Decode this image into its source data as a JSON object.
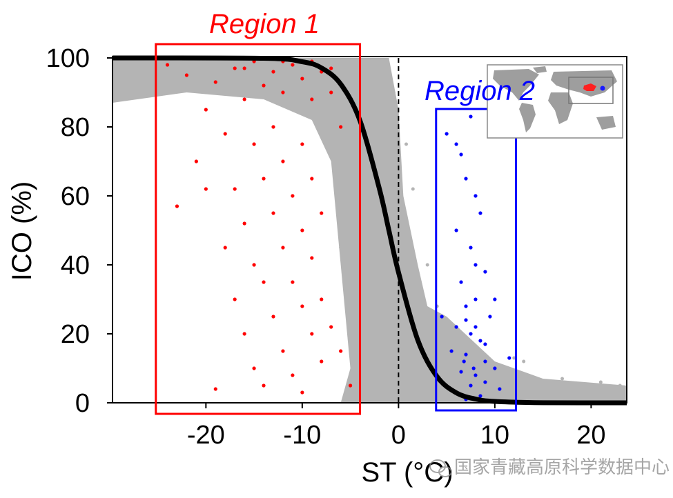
{
  "chart_data": {
    "type": "scatter",
    "title": "",
    "xlabel": "ST (°C)",
    "ylabel": "ICO (%)",
    "xlim": [
      -29.7,
      23.7
    ],
    "ylim": [
      0,
      100
    ],
    "xticks": [
      -20,
      -10,
      0,
      10,
      20
    ],
    "yticks": [
      0,
      20,
      40,
      60,
      80,
      100
    ],
    "grid": false,
    "reference_line": {
      "x": 0,
      "style": "dashed",
      "color": "#000000"
    },
    "colors": {
      "background_points": "#b4b4b4",
      "region1": "#ff0000",
      "region2": "#0000ff",
      "curve": "#000000"
    },
    "dense_background_region": [
      [
        -29.7,
        100
      ],
      [
        -1,
        100
      ],
      [
        0,
        85
      ],
      [
        0.5,
        60
      ],
      [
        2,
        40
      ],
      [
        3,
        28
      ],
      [
        5,
        25
      ],
      [
        10,
        12
      ],
      [
        15,
        7
      ],
      [
        23.7,
        5
      ],
      [
        23.7,
        0
      ],
      [
        -6,
        0
      ],
      [
        -5,
        10
      ],
      [
        -6,
        40
      ],
      [
        -7,
        70
      ],
      [
        -9,
        82
      ],
      [
        -14,
        88
      ],
      [
        -22,
        90
      ],
      [
        -29.7,
        87
      ]
    ],
    "series": [
      {
        "color": "#b4b4b4",
        "points": [
          [
            -28,
            92
          ],
          [
            -26,
            89
          ],
          [
            -25,
            95
          ],
          [
            -27,
            97
          ],
          [
            -23,
            91
          ],
          [
            -6,
            45
          ],
          [
            -5,
            30
          ],
          [
            -4,
            60
          ],
          [
            -3,
            80
          ],
          [
            -2,
            90
          ],
          [
            -1,
            70
          ],
          [
            0,
            55
          ],
          [
            1,
            45
          ],
          [
            2,
            35
          ],
          [
            2.5,
            20
          ],
          [
            3,
            40
          ],
          [
            3.5,
            10
          ],
          [
            4,
            28
          ],
          [
            6,
            22
          ],
          [
            8,
            15
          ],
          [
            9,
            10
          ],
          [
            10,
            8
          ],
          [
            11,
            5
          ],
          [
            12,
            9
          ],
          [
            13,
            3
          ],
          [
            14,
            6
          ],
          [
            15,
            2
          ],
          [
            16,
            4
          ],
          [
            17,
            7
          ],
          [
            18,
            3
          ],
          [
            19,
            5
          ],
          [
            20,
            2
          ],
          [
            21,
            6
          ],
          [
            22,
            3
          ],
          [
            23,
            5
          ],
          [
            12,
            13
          ],
          [
            13,
            12
          ],
          [
            0.8,
            75
          ],
          [
            -0.5,
            90
          ],
          [
            1.5,
            62
          ]
        ]
      },
      {
        "name": "Region 1",
        "color": "#ff0000",
        "points": [
          [
            -23,
            57
          ],
          [
            -21,
            70
          ],
          [
            -20,
            85
          ],
          [
            -19,
            93
          ],
          [
            -19,
            4
          ],
          [
            -18,
            78
          ],
          [
            -18,
            45
          ],
          [
            -17,
            97
          ],
          [
            -17,
            62
          ],
          [
            -17,
            30
          ],
          [
            -16,
            88
          ],
          [
            -16,
            52
          ],
          [
            -16,
            20
          ],
          [
            -15,
            99
          ],
          [
            -15,
            75
          ],
          [
            -15,
            40
          ],
          [
            -15,
            10
          ],
          [
            -14,
            92
          ],
          [
            -14,
            65
          ],
          [
            -14,
            35
          ],
          [
            -14,
            5
          ],
          [
            -13,
            96
          ],
          [
            -13,
            80
          ],
          [
            -13,
            55
          ],
          [
            -13,
            25
          ],
          [
            -12,
            90
          ],
          [
            -12,
            70
          ],
          [
            -12,
            45
          ],
          [
            -12,
            15
          ],
          [
            -11,
            98
          ],
          [
            -11,
            60
          ],
          [
            -11,
            35
          ],
          [
            -11,
            8
          ],
          [
            -10,
            94
          ],
          [
            -10,
            75
          ],
          [
            -10,
            50
          ],
          [
            -10,
            28
          ],
          [
            -10,
            3
          ],
          [
            -9,
            88
          ],
          [
            -9,
            65
          ],
          [
            -9,
            42
          ],
          [
            -9,
            20
          ],
          [
            -8,
            96
          ],
          [
            -8,
            55
          ],
          [
            -8,
            30
          ],
          [
            -8,
            12
          ],
          [
            -7,
            90
          ],
          [
            -7,
            22
          ],
          [
            -6,
            15
          ],
          [
            -6,
            80
          ],
          [
            -5,
            5
          ],
          [
            -24,
            98
          ],
          [
            -22,
            95
          ],
          [
            -20,
            62
          ],
          [
            -18,
            100
          ],
          [
            -16,
            97
          ],
          [
            -12,
            99
          ],
          [
            -9,
            99
          ],
          [
            -7,
            97
          ]
        ]
      },
      {
        "name": "Region 2",
        "color": "#0000ff",
        "points": [
          [
            5,
            78
          ],
          [
            6,
            75
          ],
          [
            6.5,
            72
          ],
          [
            7.5,
            83
          ],
          [
            7,
            65
          ],
          [
            8,
            60
          ],
          [
            8.5,
            55
          ],
          [
            6,
            50
          ],
          [
            7.5,
            45
          ],
          [
            9,
            38
          ],
          [
            6.5,
            35
          ],
          [
            8,
            30
          ],
          [
            7,
            28
          ],
          [
            9.5,
            25
          ],
          [
            6,
            22
          ],
          [
            7.5,
            20
          ],
          [
            8.5,
            18
          ],
          [
            5.5,
            15
          ],
          [
            7,
            14
          ],
          [
            9,
            12
          ],
          [
            10,
            10
          ],
          [
            6.5,
            9
          ],
          [
            8,
            8
          ],
          [
            9,
            6
          ],
          [
            7.5,
            5
          ],
          [
            10.5,
            4
          ],
          [
            6,
            3
          ],
          [
            8.5,
            2
          ],
          [
            7,
            1
          ],
          [
            11.5,
            13
          ],
          [
            4.5,
            25
          ],
          [
            10,
            30
          ],
          [
            8,
            40
          ],
          [
            7,
            24
          ],
          [
            8,
            22
          ],
          [
            9,
            17
          ],
          [
            6.8,
            12
          ],
          [
            7.8,
            10
          ]
        ]
      }
    ],
    "curve": {
      "color": "#000000",
      "points": [
        [
          -29.7,
          100
        ],
        [
          -14,
          99.9
        ],
        [
          -10,
          98.9
        ],
        [
          -8,
          97.1
        ],
        [
          -6,
          92.4
        ],
        [
          -4,
          81.8
        ],
        [
          -2,
          62.2
        ],
        [
          -1,
          50
        ],
        [
          0,
          37.8
        ],
        [
          2,
          18.2
        ],
        [
          4,
          7.6
        ],
        [
          6,
          2.9
        ],
        [
          8,
          1.1
        ],
        [
          10,
          0.4
        ],
        [
          15,
          0.03
        ],
        [
          23.7,
          0
        ]
      ]
    },
    "annotations": [
      {
        "text": "Region 1",
        "color": "#ff0000",
        "box": {
          "x": [
            -25.2,
            -4.0
          ],
          "y": [
            -3.2,
            104
          ]
        }
      },
      {
        "text": "Region 2",
        "color": "#0000ff",
        "box": {
          "x": [
            3.9,
            12.2
          ],
          "y": [
            -2.2,
            85.2
          ]
        }
      }
    ]
  },
  "inset": {
    "description_icon": "world-map-icon"
  },
  "watermark": {
    "text": "国家青藏高原科学数据中心",
    "icon": "wechat-icon"
  }
}
